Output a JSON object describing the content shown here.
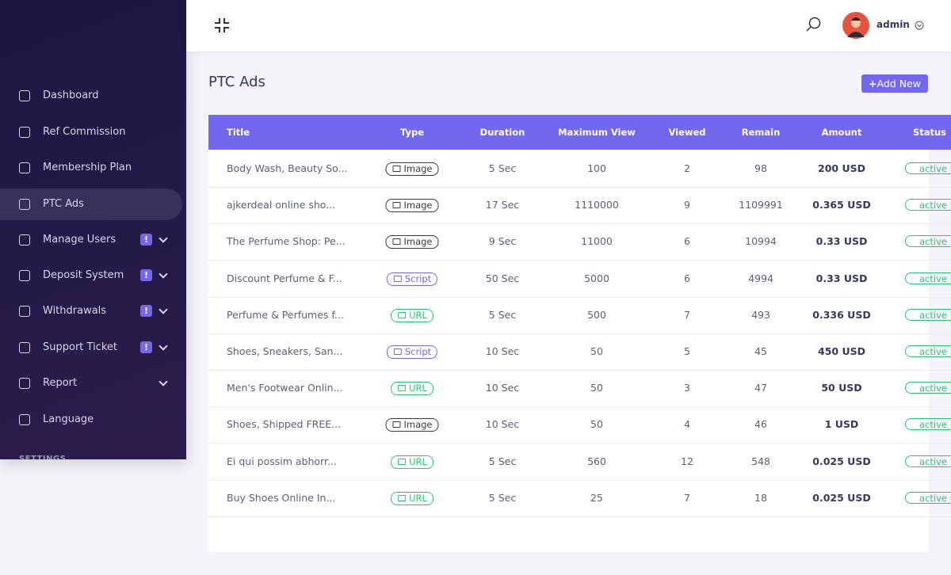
{
  "sidebar": {
    "items": [
      {
        "label": "Dashboard"
      },
      {
        "label": "Ref Commission"
      },
      {
        "label": "Membership Plan"
      },
      {
        "label": "PTC Ads"
      },
      {
        "label": "Manage Users",
        "badge": "!"
      },
      {
        "label": "Deposit System",
        "badge": "!"
      },
      {
        "label": "Withdrawals",
        "badge": "!"
      },
      {
        "label": "Support Ticket",
        "badge": "!"
      },
      {
        "label": "Report"
      },
      {
        "label": "Language"
      }
    ],
    "section": "SETTINGS"
  },
  "header": {
    "user": "admin"
  },
  "page": {
    "title": "PTC Ads",
    "button": "Add New"
  },
  "table": {
    "columns": [
      "Title",
      "Type",
      "Duration",
      "Maximum View",
      "Viewed",
      "Remain",
      "Amount",
      "Status"
    ],
    "type_colors": [
      "#343a40",
      "#343a40",
      "#343a40",
      "#7367f0",
      "#28c76f",
      "#7367f0",
      "#28c76f",
      "#343a40",
      "#28c76f",
      "#28c76f"
    ],
    "rows": [
      [
        "Body Wash, Beauty So...",
        "Image",
        "5 Sec",
        "100",
        "2",
        "98",
        "200 USD",
        "active"
      ],
      [
        "ajkerdeal online sho...",
        "Image",
        "17 Sec",
        "1110000",
        "9",
        "1109991",
        "0.365 USD",
        "active"
      ],
      [
        "The Perfume Shop: Pe...",
        "Image",
        "9 Sec",
        "11000",
        "6",
        "10994",
        "0.33 USD",
        "active"
      ],
      [
        "Discount Perfume & F...",
        "Script",
        "50 Sec",
        "5000",
        "6",
        "4994",
        "0.33 USD",
        "active"
      ],
      [
        "Perfume & Perfumes f...",
        "URL",
        "5 Sec",
        "500",
        "7",
        "493",
        "0.336 USD",
        "active"
      ],
      [
        "Shoes, Sneakers, San...",
        "Script",
        "10 Sec",
        "50",
        "5",
        "45",
        "450 USD",
        "active"
      ],
      [
        "Men's Footwear Onlin...",
        "URL",
        "10 Sec",
        "50",
        "3",
        "47",
        "50 USD",
        "active"
      ],
      [
        "Shoes, Shipped FREE...",
        "Image",
        "10 Sec",
        "50",
        "4",
        "46",
        "1 USD",
        "active"
      ],
      [
        "Ei qui possim abhorr...",
        "URL",
        "5 Sec",
        "560",
        "12",
        "548",
        "0.025 USD",
        "active"
      ],
      [
        "Buy Shoes Online In...",
        "URL",
        "5 Sec",
        "25",
        "7",
        "18",
        "0.025 USD",
        "active"
      ]
    ]
  }
}
